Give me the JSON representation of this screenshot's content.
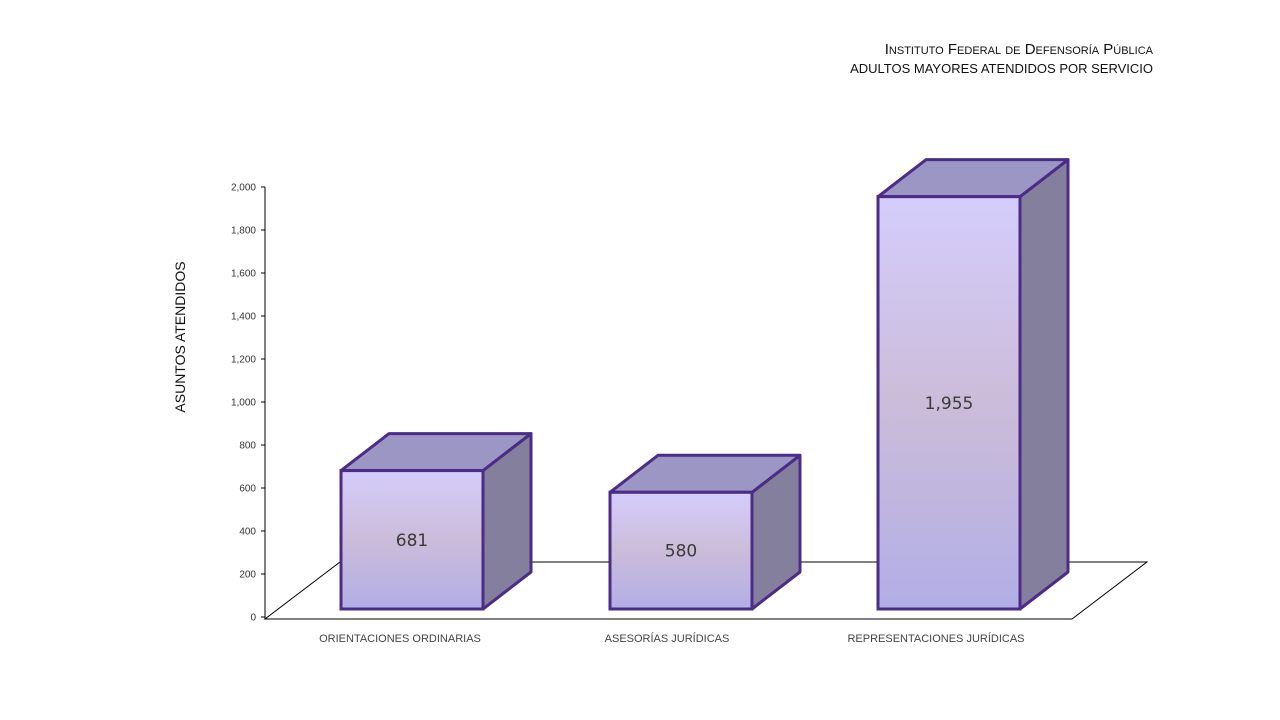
{
  "chart_data": {
    "type": "bar",
    "title": "Instituto Federal de Defensoría Pública",
    "subtitle": "ADULTOS MAYORES ATENDIDOS POR SERVICIO",
    "ylabel": "ASUNTOS ATENDIDOS",
    "xlabel": "",
    "categories": [
      "ORIENTACIONES ORDINARIAS",
      "ASESORÍAS JURÍDICAS",
      "REPRESENTACIONES JURÍDICAS"
    ],
    "values": [
      681,
      580,
      1955
    ],
    "data_labels": [
      "681",
      "580",
      "1,955"
    ],
    "ylim": [
      0,
      2000
    ],
    "yticks": [
      0,
      200,
      400,
      600,
      800,
      1000,
      1200,
      1400,
      1600,
      1800,
      2000
    ],
    "ytick_labels": [
      "0",
      "200",
      "400",
      "600",
      "800",
      "1,000",
      "1,200",
      "1,400",
      "1,600",
      "1,800",
      "2,000"
    ],
    "grid": false,
    "legend": "none",
    "style": "3d-box",
    "colors": {
      "front_top": "#d4cdfc",
      "front_mid": "#cbbcd9",
      "front_bottom": "#b2aee6",
      "top_face": "#9b96c3",
      "side_face": "#857f9e",
      "outline": "#4b2c86"
    }
  }
}
